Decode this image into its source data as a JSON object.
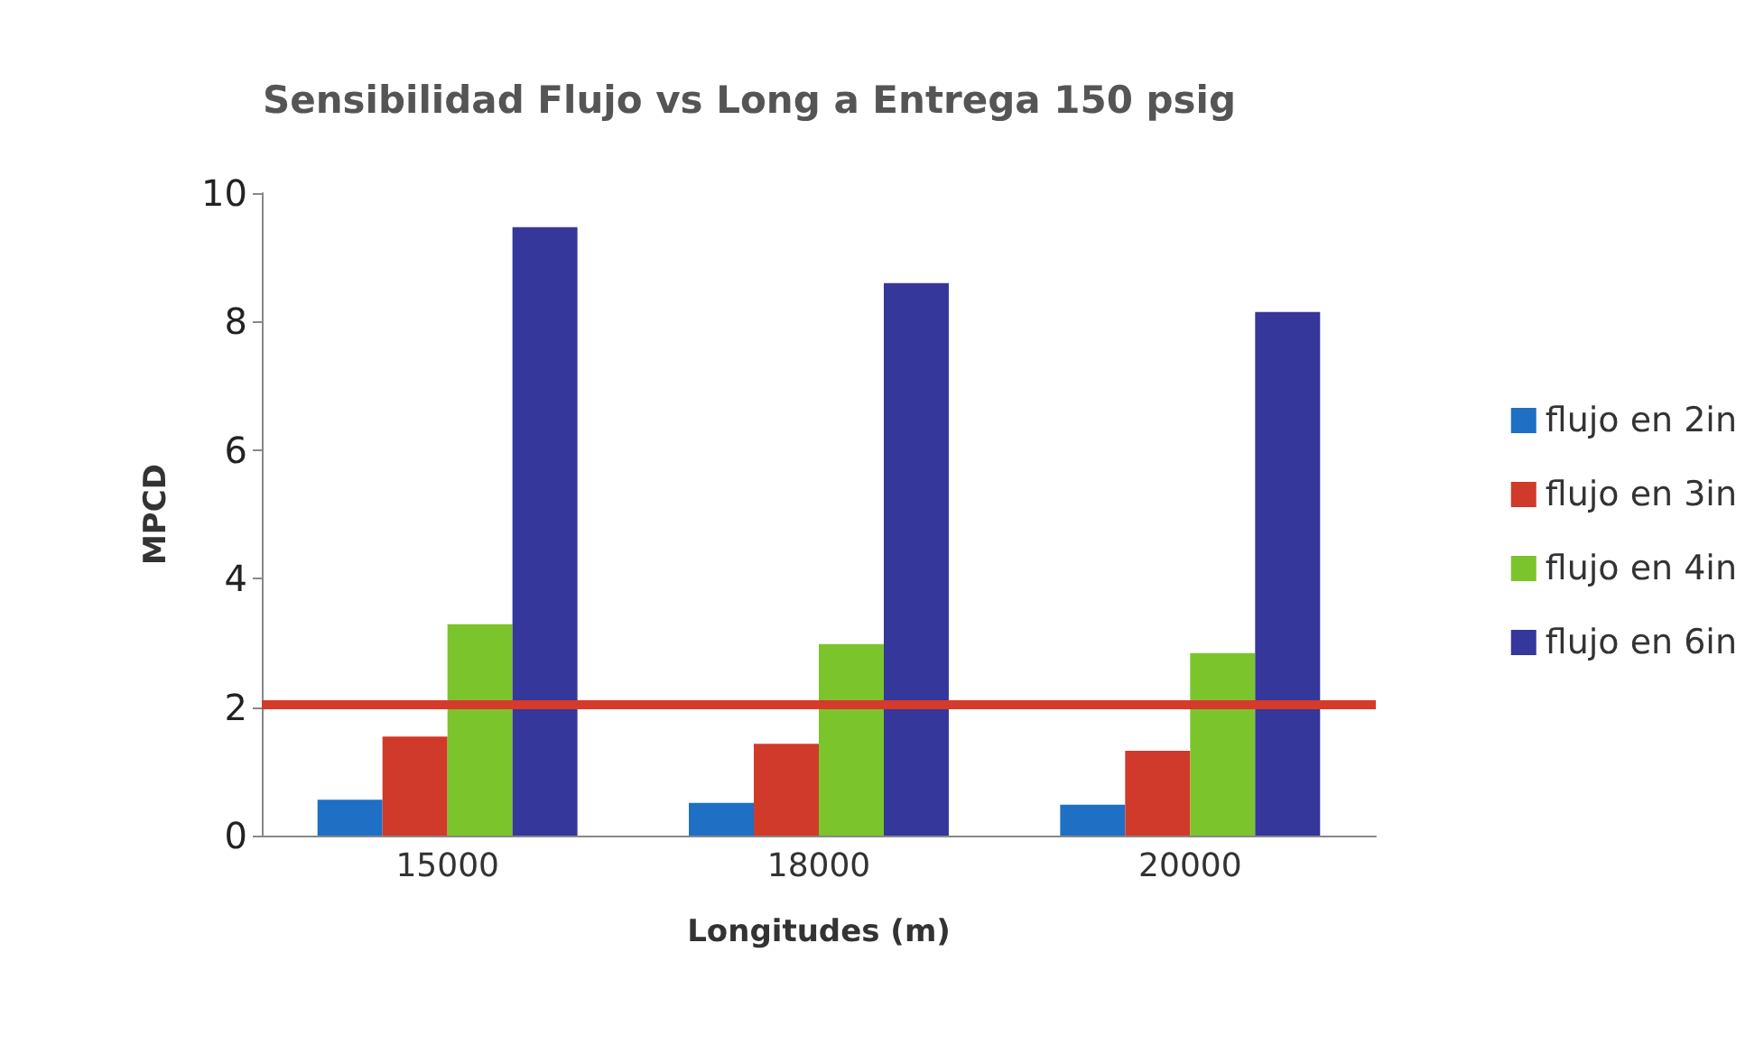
{
  "chart_data": {
    "type": "bar",
    "title": "Sensibilidad Flujo vs Long a Entrega 150 psig",
    "xlabel": "Longitudes (m)",
    "ylabel": "MPCD",
    "categories": [
      "15000",
      "18000",
      "20000"
    ],
    "series": [
      {
        "name": "flujo en 2in",
        "color": "#1f6fc4",
        "values": [
          0.56,
          0.51,
          0.48
        ]
      },
      {
        "name": "flujo en 3in",
        "color": "#d03a2a",
        "values": [
          1.54,
          1.43,
          1.32
        ]
      },
      {
        "name": "flujo en 4in",
        "color": "#7cc42c",
        "values": [
          3.29,
          2.98,
          2.84
        ]
      },
      {
        "name": "flujo en 6in",
        "color": "#35379a",
        "values": [
          9.47,
          8.6,
          8.15
        ]
      }
    ],
    "ylim": [
      0,
      10
    ],
    "yticks": [
      0,
      2,
      4,
      6,
      8,
      10
    ],
    "grid": false,
    "legend": "right",
    "ref_lines": [
      {
        "axis": "y",
        "value": 2.05,
        "color": "#d63a2a",
        "line_style": "solid"
      }
    ]
  }
}
